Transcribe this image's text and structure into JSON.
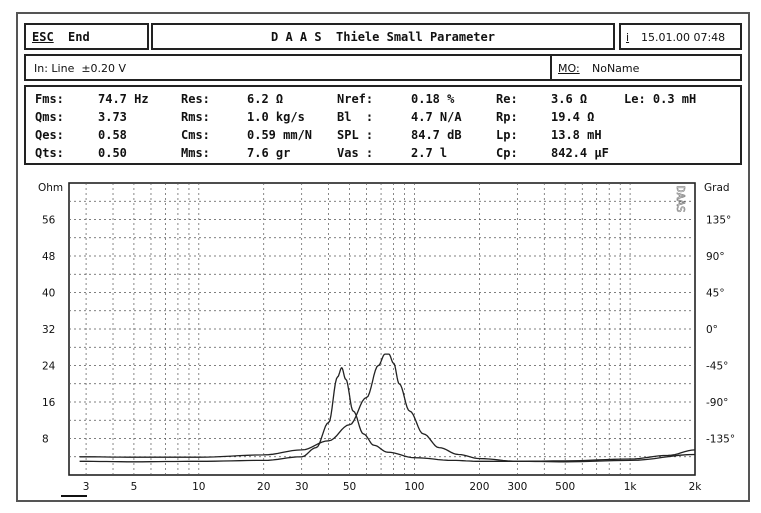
{
  "header": {
    "esc_key": "ESC",
    "end_label": "End",
    "title": "D A A S  Thiele Small Parameter",
    "info_key": "i",
    "datetime": "15.01.00 07:48"
  },
  "input_bar": {
    "input_label": "In: Line  ±0.20 V",
    "mo_key": "MO:",
    "mo_value": "NoName"
  },
  "params": [
    [
      "Fms:",
      "74.7 Hz",
      "Res:",
      "6.2 Ω",
      "Nref:",
      "0.18 %",
      "Re:",
      "3.6 Ω",
      "Le: 0.3 mH"
    ],
    [
      "Qms:",
      "3.73",
      "Rms:",
      "1.0 kg/s",
      "Bl  :",
      "4.7 N/A",
      "Rp:",
      "19.4 Ω",
      ""
    ],
    [
      "Qes:",
      "0.58",
      "Cms:",
      "0.59 mm/N",
      "SPL :",
      "84.7 dB",
      "Lp:",
      "13.8 mH",
      ""
    ],
    [
      "Qts:",
      "0.50",
      "Mms:",
      "7.6 gr",
      "Vas :",
      "2.7 l",
      "Cp:",
      "842.4 μF",
      ""
    ]
  ],
  "watermark": "DAAS",
  "chart_data": {
    "type": "line",
    "xscale": "log",
    "xlim": [
      2.5,
      2000
    ],
    "x_ticks": [
      3,
      5,
      10,
      20,
      30,
      50,
      100,
      200,
      300,
      500,
      1000,
      2000
    ],
    "x_tick_labels": [
      "3",
      "5",
      "10",
      "20",
      "30",
      "50",
      "100",
      "200",
      "300",
      "500",
      "1k",
      "2k"
    ],
    "ylim_left": [
      0,
      64
    ],
    "ylabel_left": "Ohm",
    "y_ticks_left": [
      8,
      16,
      24,
      32,
      40,
      48,
      56
    ],
    "y_tick_labels_left": [
      "8",
      "16",
      "24",
      "32",
      "40",
      "48",
      "56"
    ],
    "ylim_right": [
      -180,
      180
    ],
    "ylabel_right": "Grad",
    "y_ticks_right": [
      -135,
      -90,
      -45,
      0,
      45,
      90,
      135
    ],
    "y_tick_labels_right": [
      "-135°",
      "-90°",
      "-45°",
      "0°",
      "45°",
      "90°",
      "135°"
    ],
    "grid": true,
    "series": [
      {
        "axis": "left",
        "color": "#222222",
        "x": [
          2.8,
          5,
          10,
          20,
          30,
          35,
          40,
          44,
          46,
          48,
          52,
          58,
          65,
          75,
          100,
          150,
          200,
          300,
          500,
          1000,
          1500,
          2000
        ],
        "y": [
          3.0,
          2.9,
          3.0,
          3.2,
          4.0,
          6.0,
          11.5,
          21.5,
          23.5,
          21.0,
          14.0,
          9.0,
          6.5,
          5.0,
          3.8,
          3.2,
          3.0,
          3.0,
          3.1,
          3.5,
          4.3,
          5.5
        ]
      },
      {
        "axis": "left",
        "color": "#222222",
        "x": [
          2.8,
          5,
          10,
          20,
          30,
          40,
          50,
          60,
          68,
          73,
          76,
          80,
          85,
          95,
          110,
          130,
          160,
          200,
          300,
          500,
          1000,
          2000
        ],
        "y": [
          4.0,
          3.9,
          3.9,
          4.4,
          5.5,
          7.5,
          11.0,
          17.0,
          24.0,
          26.5,
          26.5,
          24.5,
          20.0,
          14.0,
          9.0,
          6.0,
          4.5,
          3.6,
          3.0,
          2.9,
          3.2,
          4.5
        ]
      }
    ]
  }
}
